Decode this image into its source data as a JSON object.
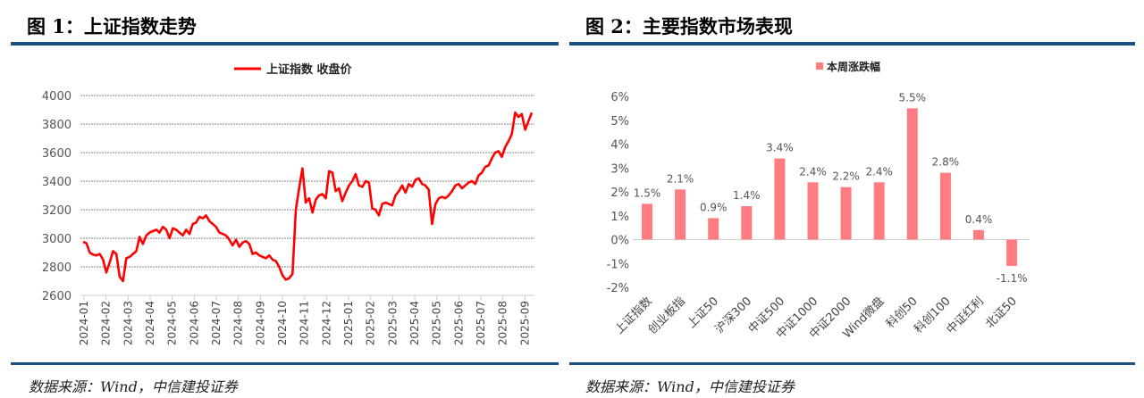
{
  "fig1": {
    "title": "图 1：上证指数走势",
    "source": "数据来源：Wind，中信建投证券"
  },
  "fig2": {
    "title": "图 2：主要指数市场表现",
    "source": "数据来源：Wind，中信建投证券"
  },
  "chart_data": [
    {
      "type": "line",
      "title": "",
      "legend": [
        "上证指数 收盘价"
      ],
      "legend_position": "top-center",
      "xlabel": "",
      "ylabel": "",
      "ylim": [
        2600,
        4000
      ],
      "yticks": [
        2600,
        2800,
        3000,
        3200,
        3400,
        3600,
        3800,
        4000
      ],
      "grid": true,
      "color": "#ff0000",
      "xticks": [
        "2024-01",
        "2024-02",
        "2024-03",
        "2024-04",
        "2024-05",
        "2024-06",
        "2024-07",
        "2024-08",
        "2024-09",
        "2024-10",
        "2024-11",
        "2024-12",
        "2025-01",
        "2025-02",
        "2025-03",
        "2025-04",
        "2025-05",
        "2025-06",
        "2025-07",
        "2025-08",
        "2025-09"
      ],
      "series": [
        {
          "name": "上证指数 收盘价",
          "values": [
            2975,
            2965,
            2900,
            2885,
            2880,
            2890,
            2850,
            2760,
            2830,
            2910,
            2890,
            2730,
            2700,
            2860,
            2870,
            2890,
            2910,
            3010,
            2960,
            3020,
            3040,
            3050,
            3060,
            3040,
            3080,
            3060,
            3000,
            3070,
            3060,
            3040,
            3020,
            3060,
            3030,
            3100,
            3110,
            3150,
            3140,
            3160,
            3120,
            3100,
            3080,
            3040,
            3030,
            3020,
            2990,
            2950,
            2990,
            2940,
            2970,
            2980,
            2960,
            2890,
            2900,
            2880,
            2870,
            2860,
            2880,
            2850,
            2840,
            2800,
            2740,
            2710,
            2720,
            2750,
            3200,
            3350,
            3490,
            3250,
            3280,
            3180,
            3270,
            3300,
            3310,
            3280,
            3470,
            3460,
            3330,
            3350,
            3260,
            3320,
            3370,
            3400,
            3450,
            3370,
            3360,
            3400,
            3390,
            3210,
            3200,
            3160,
            3240,
            3250,
            3240,
            3230,
            3300,
            3330,
            3370,
            3320,
            3380,
            3360,
            3410,
            3420,
            3380,
            3370,
            3340,
            3100,
            3240,
            3280,
            3290,
            3280,
            3300,
            3330,
            3370,
            3380,
            3350,
            3370,
            3390,
            3400,
            3380,
            3440,
            3460,
            3500,
            3510,
            3560,
            3600,
            3610,
            3570,
            3640,
            3680,
            3730,
            3880,
            3850,
            3870,
            3760,
            3820,
            3880
          ]
        }
      ]
    },
    {
      "type": "bar",
      "title": "",
      "legend": [
        "本周涨跌幅"
      ],
      "legend_position": "top-center",
      "ylim": [
        -2,
        6
      ],
      "yticks": [
        "-2%",
        "-1%",
        "0%",
        "1%",
        "2%",
        "3%",
        "4%",
        "5%",
        "6%"
      ],
      "color": "#ff7c80",
      "categories": [
        "上证指数",
        "创业板指",
        "上证50",
        "沪深300",
        "中证500",
        "中证1000",
        "中证2000",
        "Wind微盘",
        "科创50",
        "科创100",
        "中证红利",
        "北证50"
      ],
      "values": [
        1.5,
        2.1,
        0.9,
        1.4,
        3.4,
        2.4,
        2.2,
        2.4,
        5.5,
        2.8,
        0.4,
        -1.1
      ],
      "labels": [
        "1.5%",
        "2.1%",
        "0.9%",
        "1.4%",
        "3.4%",
        "2.4%",
        "2.2%",
        "2.4%",
        "5.5%",
        "2.8%",
        "0.4%",
        "-1.1%"
      ]
    }
  ]
}
